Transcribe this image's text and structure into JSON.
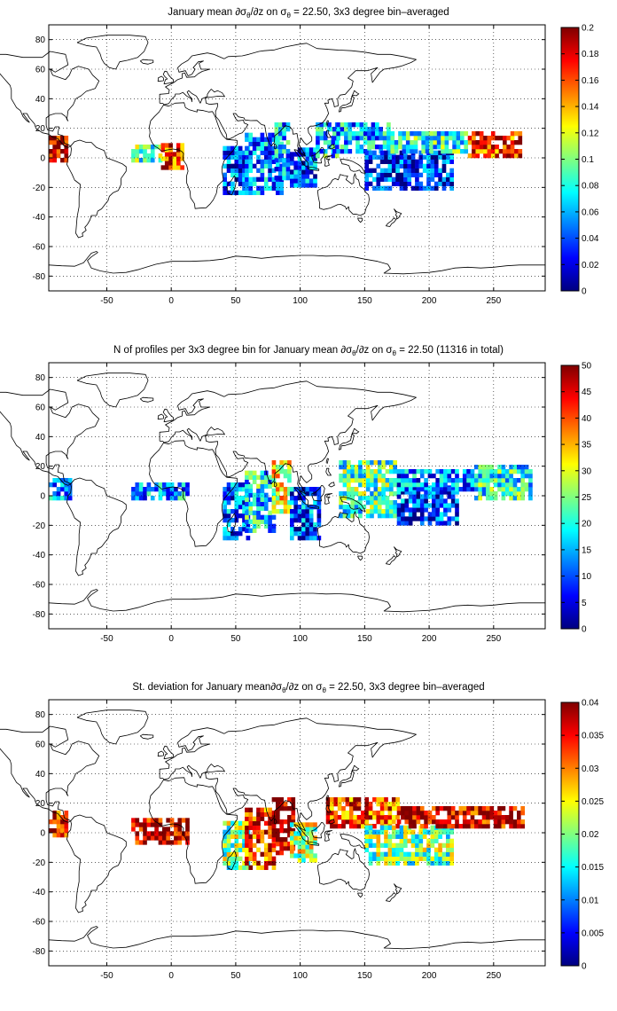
{
  "chart_data": [
    {
      "type": "heatmap",
      "title": {
        "pre": "January mean ∂σ",
        "sub1": "θ",
        "mid": "/∂z on σ",
        "sub2": "θ",
        "post": " = 22.50, 3x3 degree bin–averaged"
      },
      "xlabel": "",
      "ylabel": "",
      "xlim": [
        -95,
        290
      ],
      "ylim": [
        -90,
        90
      ],
      "xticks": [
        -50,
        0,
        50,
        100,
        150,
        200,
        250
      ],
      "yticks": [
        -80,
        -60,
        -40,
        -20,
        0,
        20,
        40,
        60,
        80
      ],
      "grid": true,
      "colorbar": {
        "min": 0,
        "max": 0.2,
        "ticks": [
          0,
          0.02,
          0.04,
          0.06,
          0.08,
          0.1,
          0.12,
          0.14,
          0.16,
          0.18,
          0.2
        ]
      },
      "regions": [
        {
          "lon": [
            -95,
            -82
          ],
          "lat": [
            -3,
            14
          ],
          "value": 0.19
        },
        {
          "lon": [
            -31,
            -8
          ],
          "lat": [
            -3,
            8
          ],
          "value": 0.09
        },
        {
          "lon": [
            -8,
            10
          ],
          "lat": [
            -8,
            8
          ],
          "value": 0.17
        },
        {
          "lon": [
            40,
            60
          ],
          "lat": [
            -25,
            8
          ],
          "value": 0.04
        },
        {
          "lon": [
            57,
            86
          ],
          "lat": [
            -25,
            15
          ],
          "value": 0.05
        },
        {
          "lon": [
            80,
            92
          ],
          "lat": [
            -15,
            22
          ],
          "value": 0.06
        },
        {
          "lon": [
            92,
            112
          ],
          "lat": [
            -20,
            5
          ],
          "value": 0.04
        },
        {
          "lon": [
            112,
            128
          ],
          "lat": [
            0,
            22
          ],
          "value": 0.07
        },
        {
          "lon": [
            125,
            170
          ],
          "lat": [
            3,
            22
          ],
          "value": 0.06
        },
        {
          "lon": [
            150,
            218
          ],
          "lat": [
            -22,
            3
          ],
          "value": 0.03
        },
        {
          "lon": [
            170,
            230
          ],
          "lat": [
            3,
            18
          ],
          "value": 0.08
        },
        {
          "lon": [
            230,
            272
          ],
          "lat": [
            0,
            16
          ],
          "value": 0.17
        }
      ]
    },
    {
      "type": "heatmap",
      "title": {
        "pre": "N of profiles per 3x3 degree bin for January mean ∂σ",
        "sub1": "θ",
        "mid": "/∂z on σ",
        "sub2": "θ",
        "post": " = 22.50 (11316 in total)"
      },
      "xlabel": "",
      "ylabel": "",
      "xlim": [
        -95,
        290
      ],
      "ylim": [
        -90,
        90
      ],
      "xticks": [
        -50,
        0,
        50,
        100,
        150,
        200,
        250
      ],
      "yticks": [
        -80,
        -60,
        -40,
        -20,
        0,
        20,
        40,
        60,
        80
      ],
      "grid": true,
      "colorbar": {
        "min": 0,
        "max": 50,
        "ticks": [
          0,
          5,
          10,
          15,
          20,
          25,
          30,
          35,
          40,
          45,
          50
        ]
      },
      "regions": [
        {
          "lon": [
            -95,
            -78
          ],
          "lat": [
            -3,
            12
          ],
          "value": 12
        },
        {
          "lon": [
            -31,
            12
          ],
          "lat": [
            -3,
            8
          ],
          "value": 14
        },
        {
          "lon": [
            40,
            60
          ],
          "lat": [
            -30,
            8
          ],
          "value": 10
        },
        {
          "lon": [
            57,
            80
          ],
          "lat": [
            -25,
            15
          ],
          "value": 18
        },
        {
          "lon": [
            78,
            92
          ],
          "lat": [
            -12,
            24
          ],
          "value": 32
        },
        {
          "lon": [
            92,
            115
          ],
          "lat": [
            -30,
            5
          ],
          "value": 10
        },
        {
          "lon": [
            130,
            175
          ],
          "lat": [
            -15,
            22
          ],
          "value": 22
        },
        {
          "lon": [
            175,
            222
          ],
          "lat": [
            -20,
            5
          ],
          "value": 9
        },
        {
          "lon": [
            175,
            235
          ],
          "lat": [
            3,
            18
          ],
          "value": 12
        },
        {
          "lon": [
            235,
            280
          ],
          "lat": [
            -3,
            20
          ],
          "value": 20
        }
      ]
    },
    {
      "type": "heatmap",
      "title": {
        "pre": "St. deviation for January mean∂σ",
        "sub1": "θ",
        "mid": "/∂z on σ",
        "sub2": "θ",
        "post": " = 22.50, 3x3 degree bin–averaged"
      },
      "xlabel": "",
      "ylabel": "",
      "xlim": [
        -95,
        290
      ],
      "ylim": [
        -90,
        90
      ],
      "xticks": [
        -50,
        0,
        50,
        100,
        150,
        200,
        250
      ],
      "yticks": [
        -80,
        -60,
        -40,
        -20,
        0,
        20,
        40,
        60,
        80
      ],
      "grid": true,
      "colorbar": {
        "min": 0,
        "max": 0.04,
        "ticks": [
          0,
          0.005,
          0.01,
          0.015,
          0.02,
          0.025,
          0.03,
          0.035,
          0.04
        ]
      },
      "regions": [
        {
          "lon": [
            -95,
            -82
          ],
          "lat": [
            -3,
            14
          ],
          "value": 0.036
        },
        {
          "lon": [
            -31,
            12
          ],
          "lat": [
            -8,
            8
          ],
          "value": 0.038
        },
        {
          "lon": [
            40,
            60
          ],
          "lat": [
            -25,
            8
          ],
          "value": 0.02
        },
        {
          "lon": [
            57,
            80
          ],
          "lat": [
            -25,
            15
          ],
          "value": 0.034
        },
        {
          "lon": [
            78,
            95
          ],
          "lat": [
            -15,
            22
          ],
          "value": 0.039
        },
        {
          "lon": [
            92,
            112
          ],
          "lat": [
            -20,
            5
          ],
          "value": 0.022
        },
        {
          "lon": [
            120,
            175
          ],
          "lat": [
            3,
            22
          ],
          "value": 0.033
        },
        {
          "lon": [
            150,
            218
          ],
          "lat": [
            -22,
            3
          ],
          "value": 0.02
        },
        {
          "lon": [
            175,
            272
          ],
          "lat": [
            3,
            16
          ],
          "value": 0.037
        }
      ]
    }
  ]
}
